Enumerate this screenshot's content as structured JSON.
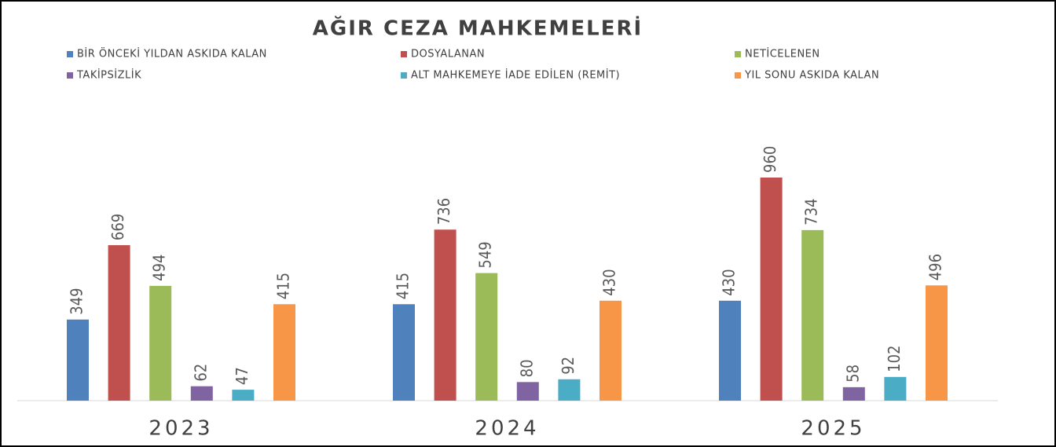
{
  "chart_data": {
    "type": "bar",
    "title": "AĞIR CEZA MAHKEMELERİ",
    "categories": [
      "2023",
      "2024",
      "2025"
    ],
    "series": [
      {
        "name": "BİR ÖNCEKİ YILDAN ASKIDA KALAN",
        "color": "#4f81bd",
        "values": [
          349,
          415,
          430
        ]
      },
      {
        "name": "DOSYALANAN",
        "color": "#c0504d",
        "values": [
          669,
          736,
          960
        ]
      },
      {
        "name": "NETİCELENEN",
        "color": "#9bbb59",
        "values": [
          494,
          549,
          734
        ]
      },
      {
        "name": "TAKİPSİZLİK",
        "color": "#8064a2",
        "values": [
          62,
          80,
          58
        ]
      },
      {
        "name": "ALT MAHKEMEYE İADE EDİLEN (REMİT)",
        "color": "#4bacc6",
        "values": [
          47,
          92,
          102
        ]
      },
      {
        "name": "YIL SONU ASKIDA KALAN",
        "color": "#f79646",
        "values": [
          415,
          430,
          496
        ]
      }
    ]
  }
}
